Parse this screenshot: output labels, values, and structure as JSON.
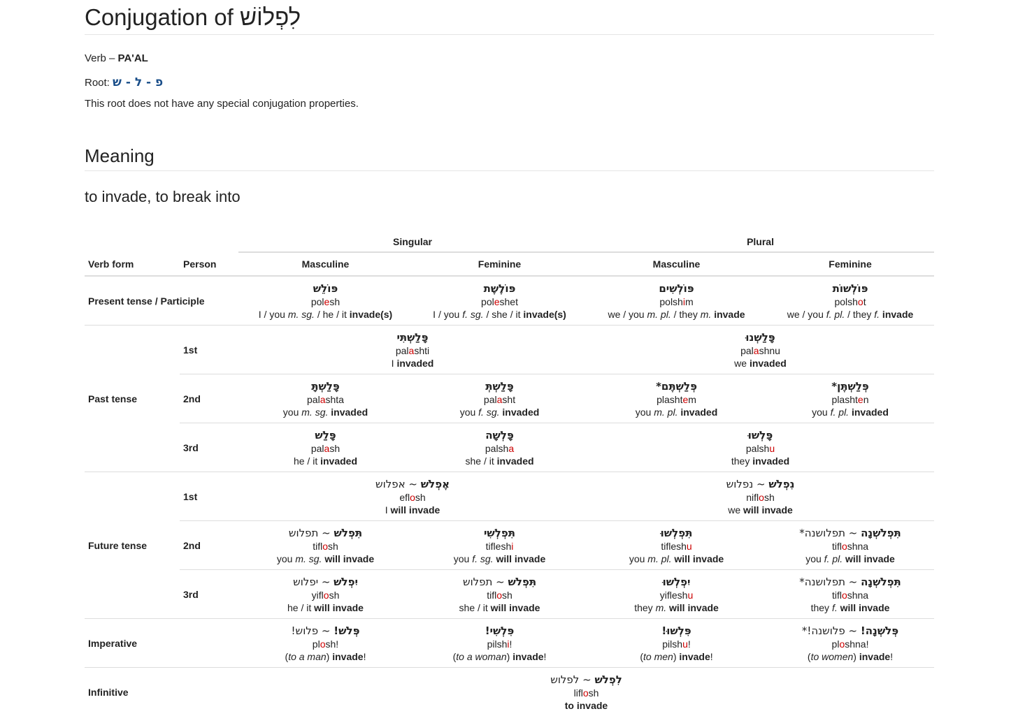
{
  "title": "Conjugation of לִפְלוֹשׁ",
  "verb_label": "Verb –",
  "verb_binyan": "PA'AL",
  "root_label": "Root:",
  "root_value": "פ - ל - ש",
  "root_note": "This root does not have any special conjugation properties.",
  "meaning_heading": "Meaning",
  "meaning_text": "to invade, to break into",
  "headers": {
    "singular": "Singular",
    "plural": "Plural",
    "verb_form": "Verb form",
    "person": "Person",
    "masculine": "Masculine",
    "feminine": "Feminine"
  },
  "rows": {
    "present": {
      "label": "Present tense / Participle",
      "cells": [
        {
          "heb": "פּוֹלֵשׁ",
          "tr": [
            "pol",
            "e",
            "sh"
          ],
          "en": [
            "I / you ",
            "m. sg.",
            " / he / it ",
            "invade(s)",
            ""
          ]
        },
        {
          "heb": "פּוֹלֶשֶׁת",
          "tr": [
            "pol",
            "e",
            "shet"
          ],
          "en": [
            "I / you ",
            "f. sg.",
            " / she / it ",
            "invade(s)",
            ""
          ]
        },
        {
          "heb": "פּוֹלְשִׁים",
          "tr": [
            "polsh",
            "i",
            "m"
          ],
          "en": [
            "we / you ",
            "m. pl.",
            " / they ",
            "m.",
            "",
            " invade"
          ]
        },
        {
          "heb": "פּוֹלְשׁוֹת",
          "tr": [
            "polsh",
            "o",
            "t"
          ],
          "en": [
            "we / you ",
            "f. pl.",
            " / they ",
            "f.",
            "",
            " invade"
          ]
        }
      ]
    },
    "past": {
      "label": "Past tense",
      "p1": {
        "person": "1st",
        "sing": {
          "heb": "פָּלַשְׁתִּי",
          "tr": [
            "pal",
            "a",
            "shti"
          ],
          "en_pre": "I ",
          "en_b": "invaded"
        },
        "plur": {
          "heb": "פָּלַשְׁנוּ",
          "tr": [
            "pal",
            "a",
            "shnu"
          ],
          "en_pre": "we ",
          "en_b": "invaded"
        }
      },
      "p2": {
        "person": "2nd",
        "cells": [
          {
            "heb": "פָּלַשְׁתָּ",
            "tr": [
              "pal",
              "a",
              "shta"
            ],
            "en_pre": "you ",
            "en_i": "m. sg.",
            "en_b": "invaded"
          },
          {
            "heb": "פָּלַשְׁתְּ",
            "tr": [
              "pal",
              "a",
              "sht"
            ],
            "en_pre": "you ",
            "en_i": "f. sg.",
            "en_b": "invaded"
          },
          {
            "heb": "פְּלַשְׁתֶּם*",
            "tr": [
              "plasht",
              "e",
              "m"
            ],
            "en_pre": "you ",
            "en_i": "m. pl.",
            "en_b": "invaded"
          },
          {
            "heb": "פְּלַשְׁתֶּן*",
            "tr": [
              "plasht",
              "e",
              "n"
            ],
            "en_pre": "you ",
            "en_i": "f. pl.",
            "en_b": "invaded"
          }
        ]
      },
      "p3": {
        "person": "3rd",
        "cells": [
          {
            "heb": "פָּלַשׁ",
            "tr": [
              "pal",
              "a",
              "sh"
            ],
            "en_pre": "he / it ",
            "en_b": "invaded"
          },
          {
            "heb": "פָּלְשָׁה",
            "tr": [
              "palsh",
              "a",
              ""
            ],
            "en_pre": "she / it ",
            "en_b": "invaded"
          }
        ],
        "plur": {
          "heb": "פָּלְשׁוּ",
          "tr": [
            "palsh",
            "u",
            ""
          ],
          "en_pre": "they ",
          "en_b": "invaded"
        }
      }
    },
    "future": {
      "label": "Future tense",
      "p1": {
        "person": "1st",
        "sing": {
          "heb": "אֶפְלֹשׁ",
          "heb2": " ~ אפלוש",
          "tr": [
            "efl",
            "o",
            "sh"
          ],
          "en_pre": "I ",
          "en_b": "will invade"
        },
        "plur": {
          "heb": "נִפְלֹשׁ",
          "heb2": " ~ נפלוש",
          "tr": [
            "nifl",
            "o",
            "sh"
          ],
          "en_pre": "we ",
          "en_b": "will invade"
        }
      },
      "p2": {
        "person": "2nd",
        "cells": [
          {
            "heb": "תִּפְלֹשׁ",
            "heb2": " ~ תפלוש",
            "tr": [
              "tifl",
              "o",
              "sh"
            ],
            "en_pre": "you ",
            "en_i": "m. sg.",
            "en_b": "will invade"
          },
          {
            "heb": "תִּפְלְשִׁי",
            "heb2": "",
            "tr": [
              "tiflesh",
              "i",
              ""
            ],
            "en_pre": "you ",
            "en_i": "f. sg.",
            "en_b": "will invade"
          },
          {
            "heb": "תִּפְלְשׁוּ",
            "heb2": "",
            "tr": [
              "tiflesh",
              "u",
              ""
            ],
            "en_pre": "you ",
            "en_i": "m. pl.",
            "en_b": "will invade"
          },
          {
            "heb": "תִּפְלֹשְׁנָה",
            "heb2": " ~ תפלושנה*",
            "tr": [
              "tifl",
              "o",
              "shna"
            ],
            "en_pre": "you ",
            "en_i": "f. pl.",
            "en_b": "will invade"
          }
        ]
      },
      "p3": {
        "person": "3rd",
        "cells": [
          {
            "heb": "יִפְלֹשׁ",
            "heb2": " ~ יפלוש",
            "tr": [
              "yifl",
              "o",
              "sh"
            ],
            "en_pre": "he / it ",
            "en_i": "",
            "en_b": "will invade"
          },
          {
            "heb": "תִּפְלֹשׁ",
            "heb2": " ~ תפלוש",
            "tr": [
              "tifl",
              "o",
              "sh"
            ],
            "en_pre": "she / it ",
            "en_i": "",
            "en_b": "will invade"
          },
          {
            "heb": "יִפְלְשׁוּ",
            "heb2": "",
            "tr": [
              "yiflesh",
              "u",
              ""
            ],
            "en_pre": "they ",
            "en_i": "m.",
            "en_b": "will invade"
          },
          {
            "heb": "תִּפְלֹשְׁנָה",
            "heb2": " ~ תפלושנה*",
            "tr": [
              "tifl",
              "o",
              "shna"
            ],
            "en_pre": "they ",
            "en_i": "f.",
            "en_b": "will invade"
          }
        ]
      }
    },
    "imperative": {
      "label": "Imperative",
      "cells": [
        {
          "heb": "פְּלֹשׁ!",
          "heb2": " ~ פלוש!",
          "tr": [
            "pl",
            "o",
            "sh!"
          ],
          "to": "to a man",
          "verb": "invade"
        },
        {
          "heb": "פִּלְשִׁי!",
          "heb2": "",
          "tr": [
            "pilsh",
            "i",
            "!"
          ],
          "to": "to a woman",
          "verb": "invade"
        },
        {
          "heb": "פִּלְשׁוּ!",
          "heb2": "",
          "tr": [
            "pilsh",
            "u",
            "!"
          ],
          "to": "to men",
          "verb": "invade"
        },
        {
          "heb": "פְּלֹשְׁנָה!",
          "heb2": " ~ פלושנה!*",
          "tr": [
            "pl",
            "o",
            "shna!"
          ],
          "to": "to women",
          "verb": "invade"
        }
      ]
    },
    "infinitive": {
      "label": "Infinitive",
      "heb": "לִפְלֹשׁ",
      "heb2": " ~ לפלוש",
      "tr": [
        "lifl",
        "o",
        "sh"
      ],
      "en_b": "to invade"
    }
  }
}
